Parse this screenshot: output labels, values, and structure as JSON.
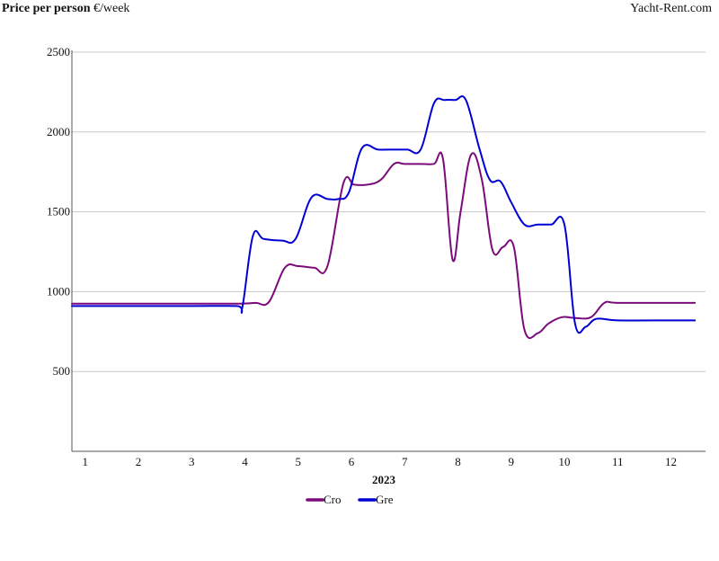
{
  "header": {
    "ylabel_bold": "Price per person",
    "ylabel_unit": " €/week",
    "brand": "Yacht-Rent.com"
  },
  "chart_data": {
    "type": "line",
    "title": "",
    "xlabel": "2023",
    "ylabel": "Price per person €/week",
    "xlim": [
      0.75,
      12.65
    ],
    "ylim": [
      0,
      2500
    ],
    "x_ticks": [
      1,
      2,
      3,
      4,
      5,
      6,
      7,
      8,
      9,
      10,
      11,
      12
    ],
    "y_ticks": [
      500,
      1000,
      1500,
      2000,
      2500
    ],
    "grid": "horizontal",
    "legend": "bottom-center",
    "series": [
      {
        "name": "Cro",
        "color": "#7b0a7b",
        "x": [
          0.75,
          1,
          2,
          3,
          3.9,
          4.2,
          4.45,
          4.75,
          5,
          5.3,
          5.55,
          5.85,
          6.05,
          6.3,
          6.55,
          6.8,
          7,
          7.3,
          7.55,
          7.72,
          7.9,
          8.05,
          8.25,
          8.45,
          8.65,
          8.85,
          9.05,
          9.25,
          9.5,
          9.7,
          9.95,
          10.2,
          10.5,
          10.75,
          11,
          12,
          12.45
        ],
        "y": [
          925,
          925,
          925,
          925,
          925,
          930,
          935,
          1150,
          1160,
          1150,
          1160,
          1680,
          1670,
          1670,
          1700,
          1800,
          1800,
          1800,
          1800,
          1830,
          1200,
          1500,
          1860,
          1700,
          1260,
          1280,
          1280,
          760,
          740,
          800,
          840,
          835,
          840,
          930,
          930,
          930,
          930
        ]
      },
      {
        "name": "Gre",
        "color": "#0000d6",
        "x": [
          0.75,
          1,
          2,
          3,
          3.85,
          3.95,
          4.15,
          4.35,
          4.7,
          4.95,
          5.25,
          5.55,
          5.75,
          5.95,
          6.2,
          6.5,
          6.8,
          7.05,
          7.3,
          7.55,
          7.75,
          7.95,
          8.15,
          8.4,
          8.6,
          8.8,
          9,
          9.25,
          9.5,
          9.75,
          10,
          10.2,
          10.4,
          10.6,
          11,
          12,
          12.45
        ],
        "y": [
          910,
          910,
          910,
          910,
          910,
          900,
          1350,
          1330,
          1320,
          1330,
          1590,
          1580,
          1580,
          1620,
          1900,
          1890,
          1890,
          1890,
          1890,
          2180,
          2200,
          2200,
          2200,
          1900,
          1700,
          1690,
          1560,
          1420,
          1420,
          1420,
          1420,
          800,
          780,
          830,
          820,
          820,
          820
        ]
      }
    ]
  }
}
